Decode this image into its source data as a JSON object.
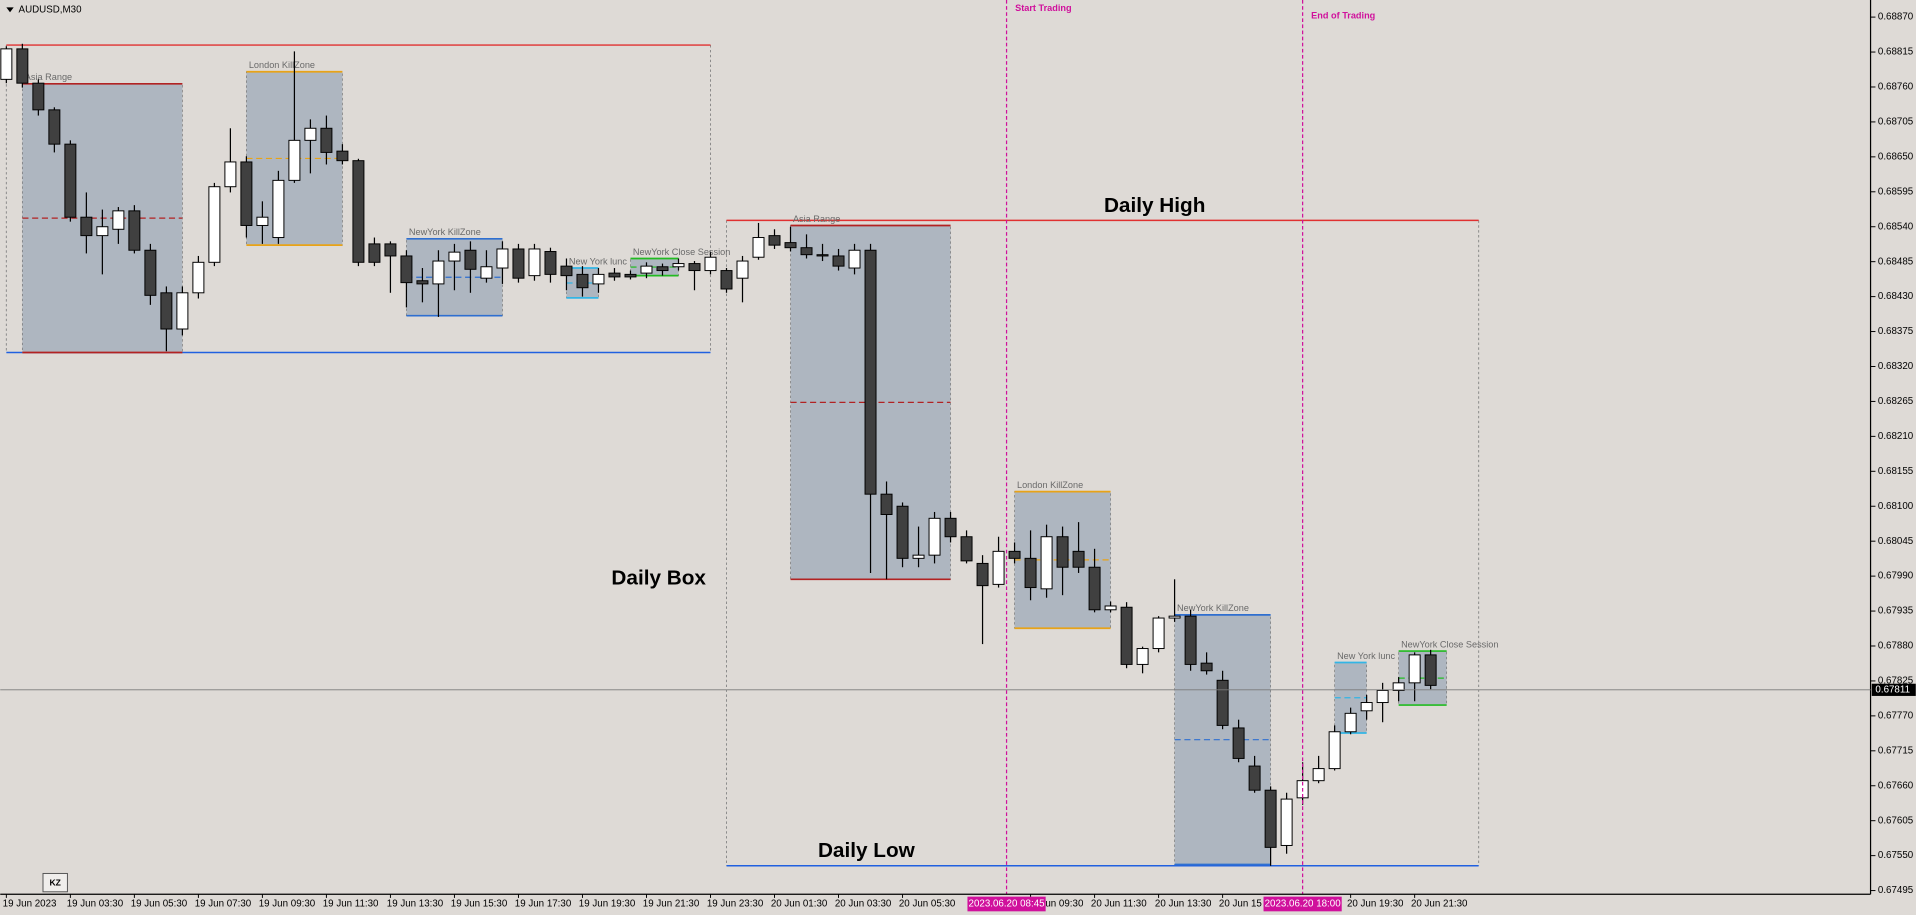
{
  "chart_data": {
    "type": "candlestick",
    "symbol": "AUDUSD,M30",
    "categories": [
      "19 Jun 2023",
      null,
      null,
      null,
      "19 Jun 03:30",
      null,
      null,
      null,
      "19 Jun 05:30",
      null,
      null,
      null,
      "19 Jun 07:30",
      null,
      null,
      null,
      "19 Jun 09:30",
      null,
      null,
      null,
      "19 Jun 11:30",
      null,
      null,
      null,
      "19 Jun 13:30",
      null,
      null,
      null,
      "19 Jun 15:30",
      null,
      null,
      null,
      "19 Jun 17:30",
      null,
      null,
      null,
      "19 Jun 19:30",
      null,
      null,
      null,
      "19 Jun 21:30",
      null,
      null,
      null,
      "19 Jun 23:30",
      null,
      null,
      null,
      "20 Jun 01:30",
      null,
      null,
      null,
      "20 Jun 03:30",
      null,
      null,
      null,
      "20 Jun 05:30",
      null,
      null,
      null,
      null,
      null,
      null,
      null,
      "20 Jun 09:30",
      null,
      null,
      null,
      "20 Jun 11:30",
      null,
      null,
      null,
      "20 Jun 13:30",
      null,
      null,
      null,
      "20 Jun 15",
      null,
      null,
      null,
      null,
      null,
      null,
      null,
      "20 Jun 19:30",
      null,
      null,
      null,
      "20 Jun 21:30",
      null
    ],
    "open": [
      0.68772,
      0.6882,
      0.68766,
      0.68724,
      0.6867,
      0.68555,
      0.68526,
      0.68536,
      0.68565,
      0.68503,
      0.68436,
      0.68379,
      0.68436,
      0.68484,
      0.68603,
      0.68642,
      0.68542,
      0.68523,
      0.68613,
      0.68676,
      0.68695,
      0.68659,
      0.68644,
      0.68513,
      0.68513,
      0.68494,
      0.68455,
      0.6845,
      0.68486,
      0.68503,
      0.68459,
      0.68475,
      0.68505,
      0.68463,
      0.68501,
      0.68478,
      0.68465,
      0.6845,
      0.68467,
      0.68465,
      0.68467,
      0.68477,
      0.68477,
      0.68482,
      0.68471,
      0.68471,
      0.68459,
      0.68492,
      0.68526,
      0.68515,
      0.68507,
      0.68496,
      0.68494,
      0.68475,
      0.68503,
      0.68119,
      0.681,
      0.68018,
      0.68023,
      0.68081,
      0.68052,
      0.6801,
      0.67977,
      0.68029,
      0.68018,
      0.6797,
      0.68052,
      0.68029,
      0.68004,
      0.67937,
      0.67941,
      0.67851,
      0.67876,
      0.67924,
      0.67927,
      0.67853,
      0.67826,
      0.67751,
      0.67691,
      0.67653,
      0.67566,
      0.67641,
      0.67668,
      0.67687,
      0.67745,
      0.67778,
      0.67791,
      0.6781,
      0.67822,
      0.67866
    ],
    "high": [
      0.68824,
      0.68828,
      0.68772,
      0.68728,
      0.68676,
      0.68594,
      0.68567,
      0.68571,
      0.68574,
      0.68513,
      0.68446,
      0.68446,
      0.68494,
      0.68609,
      0.68695,
      0.68651,
      0.6858,
      0.68628,
      0.68816,
      0.68709,
      0.68715,
      0.6867,
      0.68647,
      0.68523,
      0.68517,
      0.68503,
      0.68475,
      0.68503,
      0.68513,
      0.68517,
      0.68503,
      0.68517,
      0.68513,
      0.68513,
      0.68507,
      0.6849,
      0.68478,
      0.68475,
      0.68475,
      0.68471,
      0.68484,
      0.68482,
      0.6849,
      0.68486,
      0.685,
      0.68475,
      0.68494,
      0.68546,
      0.68536,
      0.6854,
      0.68528,
      0.68513,
      0.68505,
      0.68513,
      0.68513,
      0.68139,
      0.68106,
      0.68068,
      0.68091,
      0.68091,
      0.68062,
      0.68023,
      0.68052,
      0.68043,
      0.68062,
      0.68071,
      0.68068,
      0.68075,
      0.68033,
      0.6795,
      0.67949,
      0.67879,
      0.67927,
      0.67985,
      0.67937,
      0.6787,
      0.67841,
      0.67764,
      0.67707,
      0.67659,
      0.67649,
      0.67697,
      0.67707,
      0.67755,
      0.67783,
      0.67803,
      0.67822,
      0.67831,
      0.6787,
      0.67874
    ],
    "low": [
      0.68766,
      0.68759,
      0.68715,
      0.68657,
      0.68548,
      0.68498,
      0.68465,
      0.68513,
      0.68498,
      0.68417,
      0.68344,
      0.68369,
      0.68427,
      0.68478,
      0.68594,
      0.68523,
      0.68513,
      0.68513,
      0.68609,
      0.68624,
      0.68638,
      0.68638,
      0.68478,
      0.68478,
      0.68436,
      0.68413,
      0.68421,
      0.68398,
      0.6844,
      0.68436,
      0.68452,
      0.6845,
      0.68452,
      0.68455,
      0.68452,
      0.6844,
      0.6843,
      0.68436,
      0.68455,
      0.68457,
      0.68459,
      0.68463,
      0.68471,
      0.6844,
      0.68465,
      0.68436,
      0.68421,
      0.68488,
      0.68505,
      0.68501,
      0.6849,
      0.68486,
      0.68471,
      0.68465,
      0.67995,
      0.67985,
      0.68004,
      0.68004,
      0.6801,
      0.68043,
      0.6801,
      0.67883,
      0.67972,
      0.6801,
      0.67952,
      0.67956,
      0.6796,
      0.67995,
      0.67933,
      0.67933,
      0.67845,
      0.67837,
      0.6787,
      0.67918,
      0.67841,
      0.67835,
      0.67749,
      0.67697,
      0.67649,
      0.67534,
      0.67553,
      0.6763,
      0.67664,
      0.67684,
      0.67741,
      0.67764,
      0.6776,
      0.67793,
      0.67793,
      0.67812
    ],
    "close": [
      0.6882,
      0.68766,
      0.68724,
      0.6867,
      0.68555,
      0.68526,
      0.6854,
      0.68565,
      0.68503,
      0.68432,
      0.68379,
      0.68436,
      0.68484,
      0.68603,
      0.68642,
      0.68542,
      0.68555,
      0.68613,
      0.68676,
      0.68695,
      0.68657,
      0.68644,
      0.68484,
      0.68484,
      0.68494,
      0.68452,
      0.6845,
      0.68486,
      0.685,
      0.68473,
      0.68477,
      0.68505,
      0.68459,
      0.68505,
      0.68465,
      0.68463,
      0.68444,
      0.68465,
      0.68461,
      0.68461,
      0.68478,
      0.68471,
      0.68482,
      0.68471,
      0.68492,
      0.68442,
      0.68486,
      0.68523,
      0.68511,
      0.68507,
      0.68496,
      0.68494,
      0.68478,
      0.68503,
      0.68119,
      0.68087,
      0.68018,
      0.68023,
      0.68081,
      0.68052,
      0.68014,
      0.67975,
      0.68029,
      0.68018,
      0.67972,
      0.68052,
      0.68004,
      0.68004,
      0.67937,
      0.67943,
      0.67851,
      0.67876,
      0.67924,
      0.67927,
      0.67851,
      0.67841,
      0.67755,
      0.67703,
      0.67653,
      0.67563,
      0.67639,
      0.67668,
      0.67687,
      0.67745,
      0.67774,
      0.67791,
      0.6781,
      0.67822,
      0.67866,
      0.67818
    ],
    "up_color": "#ffffff",
    "down_color": "#404040",
    "ylim": [
      0.67495,
      0.6887
    ],
    "yticks": [
      {
        "value": 0.6887,
        "label": "0.68870"
      },
      0.68815,
      {
        "value": 0.6876,
        "label": "0.68760"
      },
      0.68705,
      {
        "value": 0.6865,
        "label": "0.68650"
      },
      0.68595,
      {
        "value": 0.6854,
        "label": "0.68540"
      },
      0.68485,
      {
        "value": 0.6843,
        "label": "0.68430"
      },
      0.68375,
      {
        "value": 0.6832,
        "label": "0.68320"
      },
      0.68265,
      {
        "value": 0.6821,
        "label": "0.68210"
      },
      0.68155,
      {
        "value": 0.681,
        "label": "0.68100"
      },
      0.68045,
      {
        "value": 0.6799,
        "label": "0.67990"
      },
      0.67935,
      {
        "value": 0.6788,
        "label": "0.67880"
      },
      0.67825,
      {
        "value": 0.6777,
        "label": "0.67770"
      },
      0.67715,
      {
        "value": 0.6766,
        "label": "0.67660"
      },
      0.67605,
      {
        "value": 0.6755,
        "label": "0.67550"
      },
      0.67495
    ],
    "current_price": {
      "value": 0.67811,
      "label": "0.67811"
    },
    "days": [
      {
        "start": 0,
        "end": 44,
        "high": 0.68826,
        "low": 0.68342
      },
      {
        "start": 45,
        "end": 92,
        "high": 0.6855,
        "low": 0.67534
      }
    ],
    "day_high_color": "#e03030",
    "day_low_color": "#2060e0",
    "box_fill": "#aeb6c0",
    "sessions": [
      {
        "name": "Asia Range",
        "start": 1,
        "end": 11,
        "high": 0.68765,
        "low": 0.68342,
        "color": "#b22222"
      },
      {
        "name": "London KillZone",
        "start": 15,
        "end": 21,
        "high": 0.68784,
        "low": 0.68511,
        "color": "#e8a317"
      },
      {
        "name": "NewYork KillZone",
        "start": 25,
        "end": 31,
        "high": 0.68521,
        "low": 0.684,
        "color": "#2f6fd0"
      },
      {
        "name": "New York lunc",
        "start": 35,
        "end": 37,
        "high": 0.68475,
        "low": 0.68428,
        "color": "#33b5e5"
      },
      {
        "name": "NewYork Close Session",
        "start": 39,
        "end": 42,
        "high": 0.6849,
        "low": 0.68463,
        "color": "#22bb22"
      },
      {
        "name": "Asia Range",
        "start": 49,
        "end": 59,
        "high": 0.68542,
        "low": 0.67985,
        "color": "#b22222"
      },
      {
        "name": "London KillZone",
        "start": 63,
        "end": 69,
        "high": 0.68123,
        "low": 0.67908,
        "color": "#e8a317"
      },
      {
        "name": "NewYork KillZone",
        "start": 73,
        "end": 79,
        "high": 0.67929,
        "low": 0.67536,
        "color": "#2f6fd0"
      },
      {
        "name": "New York lunc",
        "start": 83,
        "end": 85,
        "high": 0.67854,
        "low": 0.67743,
        "color": "#33b5e5"
      },
      {
        "name": "NewYork Close Session",
        "start": 87,
        "end": 90,
        "high": 0.67872,
        "low": 0.67787,
        "color": "#22bb22"
      }
    ],
    "vlines": [
      {
        "name": "Start Trading",
        "time": "2023.06.20 08:45",
        "at": 62.5,
        "color": "#d0109c"
      },
      {
        "name": "End of Trading",
        "time": "2023.06.20 18:00",
        "at": 81,
        "color": "#d0109c"
      }
    ],
    "annotations": [
      "Daily High",
      "Daily Box",
      "Daily Low"
    ]
  },
  "button": "KZ"
}
